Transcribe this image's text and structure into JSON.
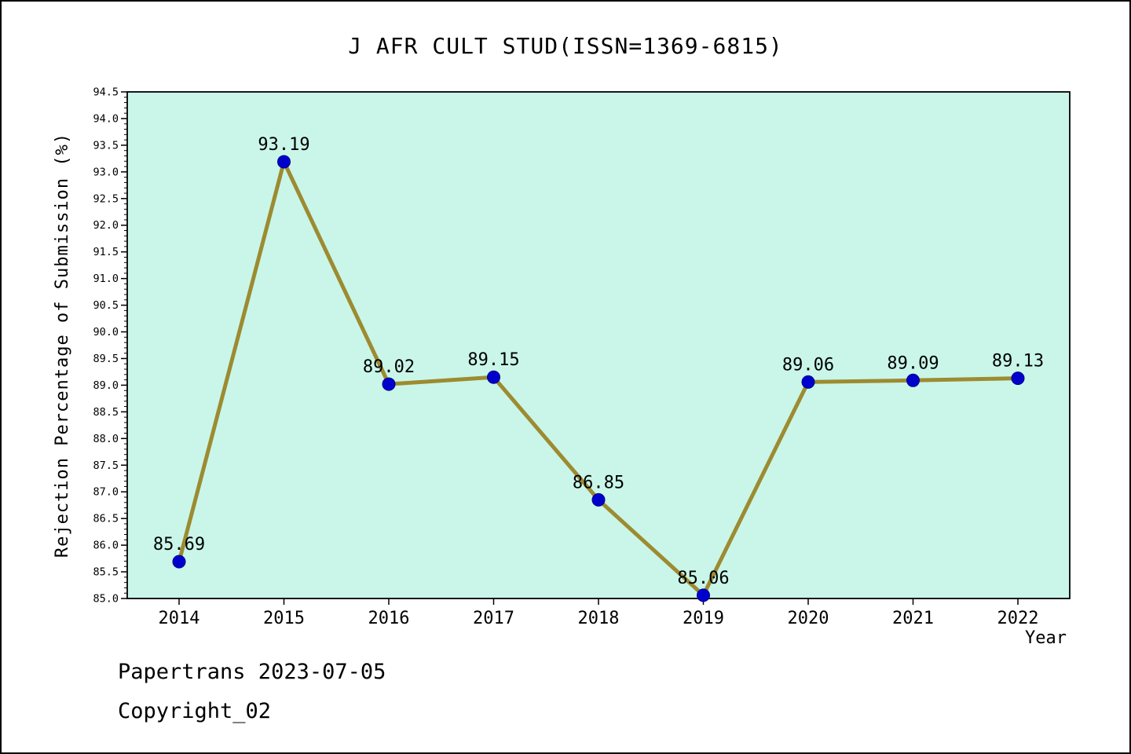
{
  "chart_data": {
    "type": "line",
    "title": "J AFR CULT STUD(ISSN=1369-6815)",
    "xlabel": "Year",
    "ylabel": "Rejection Percentage of Submission (%)",
    "categories": [
      "2014",
      "2015",
      "2016",
      "2017",
      "2018",
      "2019",
      "2020",
      "2021",
      "2022"
    ],
    "values": [
      85.69,
      93.19,
      89.02,
      89.15,
      86.85,
      85.06,
      89.06,
      89.09,
      89.13
    ],
    "ylim": [
      85.0,
      94.5
    ],
    "ytick_step": 0.5,
    "yminor_step": 0.1,
    "grid": false,
    "legend": "none",
    "plot_bg": "#c9f6e9",
    "line_color": "#9d8b31",
    "marker_color": "#0000cd",
    "marker_edge": "#00008b",
    "axis_color": "#000000"
  },
  "footer": {
    "line1": "Papertrans 2023-07-05",
    "line2": "Copyright_02"
  }
}
